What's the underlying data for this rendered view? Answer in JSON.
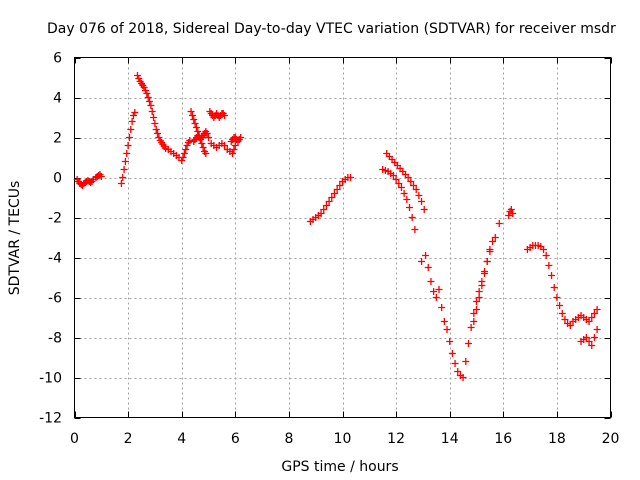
{
  "chart_data": {
    "type": "scatter",
    "title": "Day 076 of 2018, Sidereal Day-to-day VTEC variation (SDTVAR) for receiver msdr",
    "xlabel": "GPS time / hours",
    "ylabel": "SDTVAR / TECUs",
    "xlim": [
      0,
      20
    ],
    "ylim": [
      -12,
      6
    ],
    "xticks": [
      0,
      2,
      4,
      6,
      8,
      10,
      12,
      14,
      16,
      18,
      20
    ],
    "yticks": [
      -12,
      -10,
      -8,
      -6,
      -4,
      -2,
      0,
      2,
      4,
      6
    ],
    "grid": true,
    "marker": "+",
    "series": [
      {
        "name": "SDTVAR",
        "color": "#ff0000",
        "points": [
          [
            0.1,
            -0.1
          ],
          [
            0.15,
            -0.2
          ],
          [
            0.2,
            -0.3
          ],
          [
            0.25,
            -0.35
          ],
          [
            0.3,
            -0.4
          ],
          [
            0.35,
            -0.3
          ],
          [
            0.4,
            -0.25
          ],
          [
            0.45,
            -0.2
          ],
          [
            0.5,
            -0.15
          ],
          [
            0.55,
            -0.2
          ],
          [
            0.6,
            -0.25
          ],
          [
            0.65,
            -0.2
          ],
          [
            0.7,
            -0.1
          ],
          [
            0.8,
            0.0
          ],
          [
            0.85,
            0.05
          ],
          [
            0.9,
            0.1
          ],
          [
            0.95,
            0.15
          ],
          [
            1.0,
            0.05
          ],
          [
            1.75,
            -0.3
          ],
          [
            1.8,
            0.0
          ],
          [
            1.85,
            0.4
          ],
          [
            1.9,
            0.8
          ],
          [
            1.95,
            1.2
          ],
          [
            2.0,
            1.6
          ],
          [
            2.05,
            2.0
          ],
          [
            2.1,
            2.4
          ],
          [
            2.15,
            2.8
          ],
          [
            2.2,
            3.1
          ],
          [
            2.25,
            3.25
          ],
          [
            2.35,
            5.1
          ],
          [
            2.4,
            4.95
          ],
          [
            2.45,
            4.8
          ],
          [
            2.5,
            4.7
          ],
          [
            2.55,
            4.6
          ],
          [
            2.6,
            4.5
          ],
          [
            2.65,
            4.35
          ],
          [
            2.7,
            4.2
          ],
          [
            2.75,
            4.0
          ],
          [
            2.8,
            3.8
          ],
          [
            2.85,
            3.6
          ],
          [
            2.9,
            3.3
          ],
          [
            2.95,
            3.0
          ],
          [
            3.0,
            2.7
          ],
          [
            3.05,
            2.4
          ],
          [
            3.1,
            2.2
          ],
          [
            3.15,
            2.0
          ],
          [
            3.2,
            1.85
          ],
          [
            3.25,
            1.75
          ],
          [
            3.3,
            1.65
          ],
          [
            3.35,
            1.55
          ],
          [
            3.4,
            1.45
          ],
          [
            3.5,
            1.4
          ],
          [
            3.6,
            1.3
          ],
          [
            3.7,
            1.2
          ],
          [
            3.8,
            1.1
          ],
          [
            3.9,
            1.0
          ],
          [
            4.0,
            0.85
          ],
          [
            4.05,
            1.0
          ],
          [
            4.1,
            1.2
          ],
          [
            4.15,
            1.4
          ],
          [
            4.2,
            1.6
          ],
          [
            4.25,
            1.75
          ],
          [
            4.3,
            1.85
          ],
          [
            4.35,
            3.3
          ],
          [
            4.4,
            3.1
          ],
          [
            4.45,
            2.9
          ],
          [
            4.5,
            2.7
          ],
          [
            4.55,
            2.5
          ],
          [
            4.6,
            2.3
          ],
          [
            4.65,
            2.1
          ],
          [
            4.7,
            1.9
          ],
          [
            4.75,
            1.7
          ],
          [
            4.8,
            1.5
          ],
          [
            4.85,
            1.3
          ],
          [
            4.9,
            1.2
          ],
          [
            4.45,
            1.8
          ],
          [
            4.5,
            1.9
          ],
          [
            4.55,
            2.0
          ],
          [
            4.6,
            2.1
          ],
          [
            4.65,
            2.0
          ],
          [
            4.7,
            1.9
          ],
          [
            4.75,
            2.0
          ],
          [
            4.8,
            2.1
          ],
          [
            4.85,
            2.2
          ],
          [
            4.9,
            2.3
          ],
          [
            4.95,
            2.2
          ],
          [
            5.0,
            2.0
          ],
          [
            5.05,
            3.3
          ],
          [
            5.1,
            3.2
          ],
          [
            5.15,
            3.1
          ],
          [
            5.2,
            3.0
          ],
          [
            5.25,
            3.1
          ],
          [
            5.3,
            3.2
          ],
          [
            5.35,
            3.1
          ],
          [
            5.4,
            3.0
          ],
          [
            5.45,
            3.1
          ],
          [
            5.5,
            3.2
          ],
          [
            5.55,
            3.2
          ],
          [
            5.6,
            3.1
          ],
          [
            5.1,
            1.7
          ],
          [
            5.2,
            1.6
          ],
          [
            5.3,
            1.5
          ],
          [
            5.4,
            1.6
          ],
          [
            5.5,
            1.7
          ],
          [
            5.6,
            1.6
          ],
          [
            5.7,
            1.4
          ],
          [
            5.8,
            1.3
          ],
          [
            5.85,
            1.8
          ],
          [
            5.9,
            1.9
          ],
          [
            5.95,
            2.0
          ],
          [
            6.0,
            2.0
          ],
          [
            6.05,
            1.9
          ],
          [
            6.1,
            1.8
          ],
          [
            6.15,
            1.9
          ],
          [
            6.2,
            2.0
          ],
          [
            5.9,
            1.2
          ],
          [
            5.95,
            1.4
          ],
          [
            6.0,
            1.6
          ],
          [
            8.8,
            -2.2
          ],
          [
            8.9,
            -2.1
          ],
          [
            9.0,
            -2.0
          ],
          [
            9.1,
            -1.9
          ],
          [
            9.2,
            -1.8
          ],
          [
            9.3,
            -1.6
          ],
          [
            9.4,
            -1.4
          ],
          [
            9.5,
            -1.2
          ],
          [
            9.6,
            -1.0
          ],
          [
            9.7,
            -0.8
          ],
          [
            9.8,
            -0.6
          ],
          [
            9.9,
            -0.4
          ],
          [
            10.0,
            -0.2
          ],
          [
            10.1,
            -0.1
          ],
          [
            10.2,
            0.0
          ],
          [
            10.3,
            0.0
          ],
          [
            11.5,
            0.4
          ],
          [
            11.6,
            0.35
          ],
          [
            11.7,
            0.3
          ],
          [
            11.8,
            0.2
          ],
          [
            11.9,
            0.1
          ],
          [
            12.0,
            -0.1
          ],
          [
            12.1,
            -0.3
          ],
          [
            12.2,
            -0.5
          ],
          [
            12.3,
            -0.8
          ],
          [
            12.4,
            -1.1
          ],
          [
            12.5,
            -1.5
          ],
          [
            12.6,
            -2.0
          ],
          [
            12.7,
            -2.6
          ],
          [
            11.65,
            1.2
          ],
          [
            11.75,
            1.05
          ],
          [
            11.85,
            0.9
          ],
          [
            11.95,
            0.75
          ],
          [
            12.05,
            0.6
          ],
          [
            12.15,
            0.45
          ],
          [
            12.25,
            0.3
          ],
          [
            12.35,
            0.15
          ],
          [
            12.45,
            0.0
          ],
          [
            12.55,
            -0.2
          ],
          [
            12.65,
            -0.4
          ],
          [
            12.75,
            -0.6
          ],
          [
            12.85,
            -0.9
          ],
          [
            12.95,
            -1.2
          ],
          [
            13.05,
            -1.6
          ],
          [
            12.95,
            -4.2
          ],
          [
            13.1,
            -3.9
          ],
          [
            13.2,
            -4.5
          ],
          [
            13.3,
            -5.2
          ],
          [
            13.4,
            -5.7
          ],
          [
            13.5,
            -6.0
          ],
          [
            13.6,
            -5.6
          ],
          [
            13.7,
            -6.5
          ],
          [
            13.8,
            -7.2
          ],
          [
            13.9,
            -7.6
          ],
          [
            14.0,
            -8.2
          ],
          [
            14.1,
            -8.8
          ],
          [
            14.2,
            -9.3
          ],
          [
            14.3,
            -9.7
          ],
          [
            14.4,
            -9.9
          ],
          [
            14.5,
            -10.0
          ],
          [
            14.6,
            -9.2
          ],
          [
            14.7,
            -8.3
          ],
          [
            14.8,
            -7.5
          ],
          [
            14.9,
            -6.8
          ],
          [
            15.0,
            -6.2
          ],
          [
            15.1,
            -5.7
          ],
          [
            15.2,
            -5.2
          ],
          [
            15.3,
            -4.7
          ],
          [
            15.4,
            -4.2
          ],
          [
            15.5,
            -3.7
          ],
          [
            15.6,
            -3.2
          ],
          [
            15.7,
            -3.0
          ],
          [
            14.9,
            -7.2
          ],
          [
            15.0,
            -6.6
          ],
          [
            15.1,
            -6.0
          ],
          [
            15.2,
            -5.4
          ],
          [
            15.3,
            -4.8
          ],
          [
            15.4,
            -4.2
          ],
          [
            15.5,
            -3.6
          ],
          [
            15.85,
            -2.3
          ],
          [
            16.2,
            -1.9
          ],
          [
            16.25,
            -1.7
          ],
          [
            16.3,
            -1.6
          ],
          [
            16.35,
            -1.8
          ],
          [
            16.9,
            -3.6
          ],
          [
            17.0,
            -3.5
          ],
          [
            17.1,
            -3.4
          ],
          [
            17.2,
            -3.4
          ],
          [
            17.3,
            -3.4
          ],
          [
            17.4,
            -3.45
          ],
          [
            17.5,
            -3.6
          ],
          [
            17.6,
            -3.9
          ],
          [
            17.7,
            -4.4
          ],
          [
            17.8,
            -4.9
          ],
          [
            17.9,
            -5.5
          ],
          [
            18.0,
            -6.0
          ],
          [
            18.1,
            -6.4
          ],
          [
            18.2,
            -6.8
          ],
          [
            18.3,
            -7.1
          ],
          [
            18.4,
            -7.3
          ],
          [
            18.5,
            -7.4
          ],
          [
            18.6,
            -7.2
          ],
          [
            18.7,
            -7.1
          ],
          [
            18.8,
            -7.0
          ],
          [
            18.9,
            -6.9
          ],
          [
            19.0,
            -7.0
          ],
          [
            19.1,
            -7.1
          ],
          [
            19.2,
            -7.2
          ],
          [
            19.3,
            -7.0
          ],
          [
            19.4,
            -6.8
          ],
          [
            19.5,
            -6.6
          ],
          [
            18.9,
            -8.2
          ],
          [
            19.0,
            -8.1
          ],
          [
            19.1,
            -8.0
          ],
          [
            19.2,
            -8.2
          ],
          [
            19.3,
            -8.4
          ],
          [
            19.4,
            -8.0
          ],
          [
            19.5,
            -7.6
          ]
        ]
      }
    ]
  }
}
